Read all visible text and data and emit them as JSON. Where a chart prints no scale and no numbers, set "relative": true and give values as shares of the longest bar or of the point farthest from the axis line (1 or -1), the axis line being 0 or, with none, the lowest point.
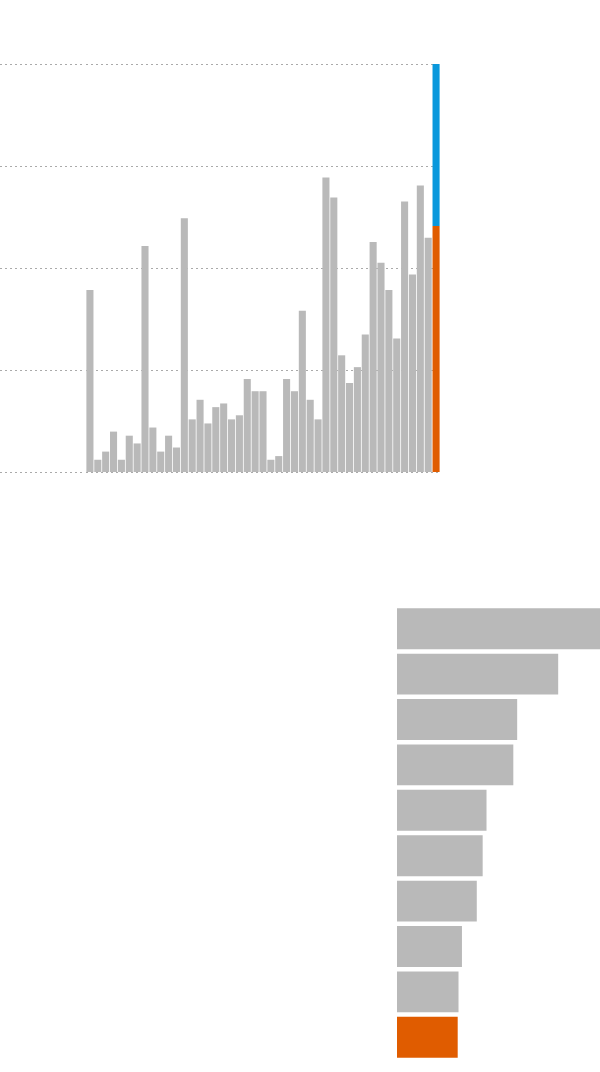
{
  "chart_data": [
    {
      "type": "bar",
      "relative": true,
      "stacked": true,
      "grid": "y",
      "legend": false,
      "tick_labels": false,
      "categories": [
        null,
        null,
        null,
        null,
        null,
        null,
        null,
        null,
        null,
        null,
        null,
        null,
        null,
        null,
        null,
        null,
        null,
        null,
        null,
        null,
        null,
        null,
        null,
        null,
        null,
        null,
        null,
        null,
        null,
        null,
        null,
        null,
        null,
        null,
        null,
        null,
        null,
        null,
        null,
        null,
        null,
        null,
        null,
        null,
        null
      ],
      "series": [
        {
          "color": "#b9b9b9",
          "values": [
            0.446,
            0.03,
            0.05,
            0.099,
            0.03,
            0.089,
            0.07,
            0.554,
            0.109,
            0.05,
            0.089,
            0.06,
            0.622,
            0.129,
            0.177,
            0.119,
            0.159,
            0.168,
            0.129,
            0.139,
            0.228,
            0.198,
            0.198,
            0.03,
            0.039,
            0.228,
            0.198,
            0.395,
            0.177,
            0.129,
            0.722,
            0.673,
            0.286,
            0.218,
            0.257,
            0.337,
            0.564,
            0.513,
            0.446,
            0.327,
            0.663,
            0.484,
            0.702,
            0.574,
            null
          ]
        },
        {
          "color": "#e05c00",
          "values": [
            null,
            null,
            null,
            null,
            null,
            null,
            null,
            null,
            null,
            null,
            null,
            null,
            null,
            null,
            null,
            null,
            null,
            null,
            null,
            null,
            null,
            null,
            null,
            null,
            null,
            null,
            null,
            null,
            null,
            null,
            null,
            null,
            null,
            null,
            null,
            null,
            null,
            null,
            null,
            null,
            null,
            null,
            null,
            null,
            0.603
          ]
        },
        {
          "color": "#0a98dc",
          "values": [
            null,
            null,
            null,
            null,
            null,
            null,
            null,
            null,
            null,
            null,
            null,
            null,
            null,
            null,
            null,
            null,
            null,
            null,
            null,
            null,
            null,
            null,
            null,
            null,
            null,
            null,
            null,
            null,
            null,
            null,
            null,
            null,
            null,
            null,
            null,
            null,
            null,
            null,
            null,
            null,
            null,
            null,
            null,
            null,
            0.397
          ]
        }
      ]
    },
    {
      "type": "bar",
      "orientation": "horizontal",
      "relative": true,
      "legend": false,
      "tick_labels": false,
      "categories": [
        null,
        null,
        null,
        null,
        null,
        null,
        null,
        null,
        null,
        null
      ],
      "values": [
        1,
        0.794,
        0.592,
        0.573,
        0.441,
        0.422,
        0.393,
        0.32,
        0.303,
        0.299
      ],
      "colors": [
        "#b9b9b9",
        "#b9b9b9",
        "#b9b9b9",
        "#b9b9b9",
        "#b9b9b9",
        "#b9b9b9",
        "#b9b9b9",
        "#b9b9b9",
        "#b9b9b9",
        "#e05c00"
      ]
    }
  ]
}
